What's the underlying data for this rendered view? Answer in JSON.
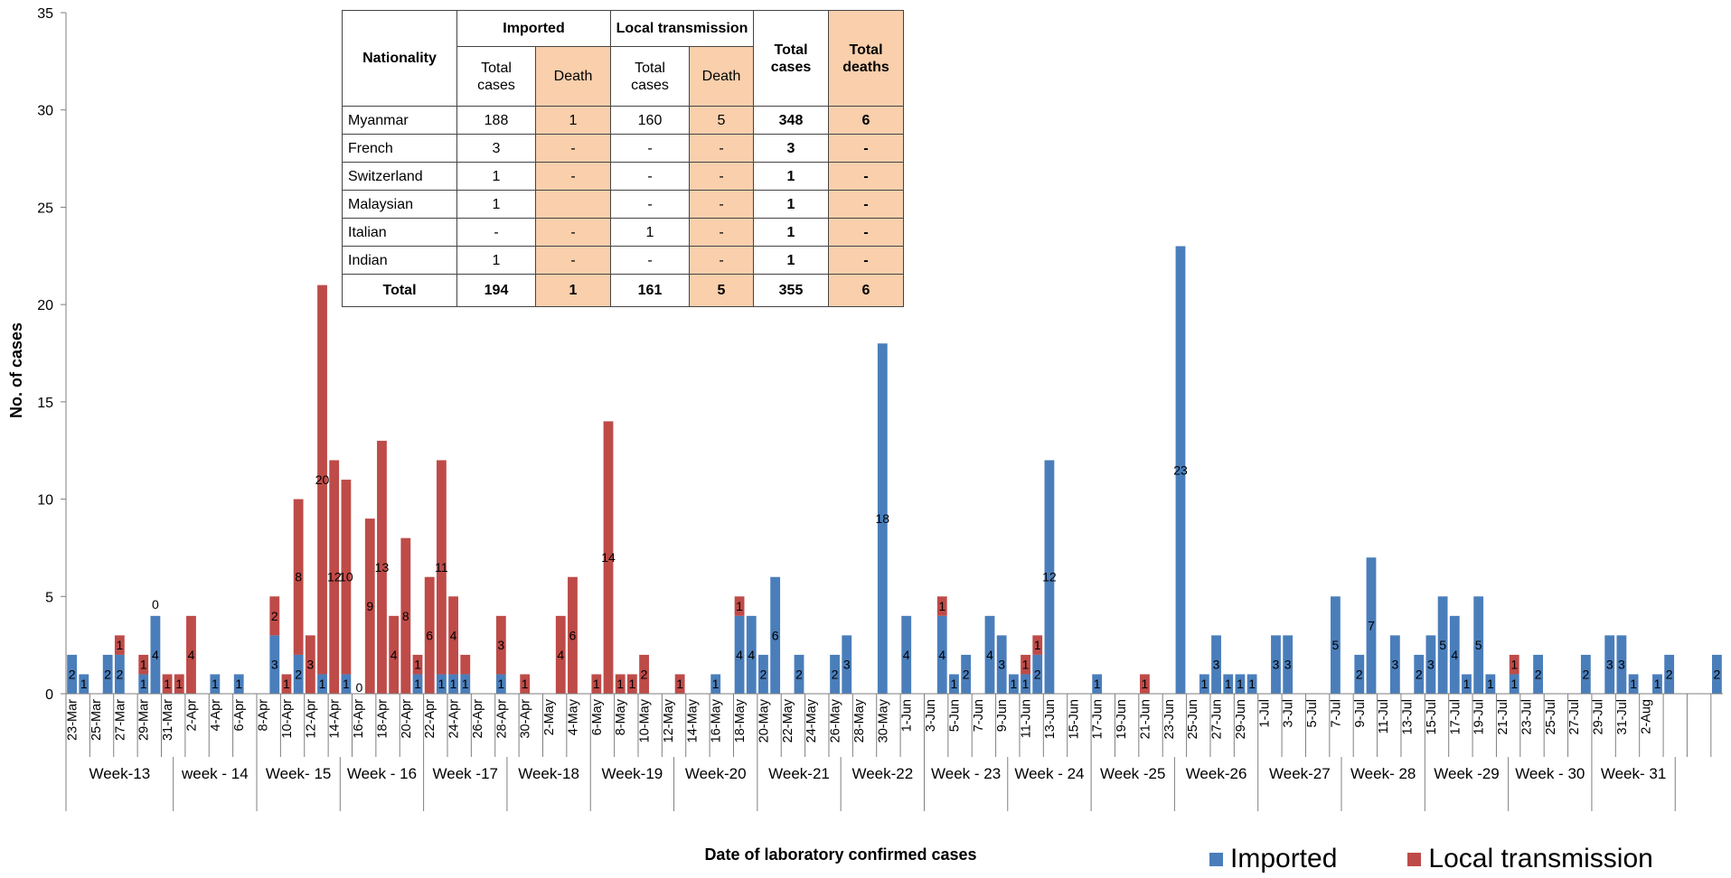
{
  "chart_data": {
    "type": "bar",
    "stacked": true,
    "ylabel": "No. of cases",
    "xlabel": "Date of laboratory confirmed cases",
    "ylim": [
      0,
      35
    ],
    "yticks": [
      0,
      5,
      10,
      15,
      20,
      25,
      30,
      35
    ],
    "legend_position": "bottom-right",
    "series": [
      {
        "name": "Imported",
        "color": "#4a7ebb"
      },
      {
        "name": "Local transmission",
        "color": "#be4b48"
      }
    ],
    "date_labels": [
      "23-Mar",
      "25-Mar",
      "27-Mar",
      "29-Mar",
      "31-Mar",
      "2-Apr",
      "4-Apr",
      "6-Apr",
      "8-Apr",
      "10-Apr",
      "12-Apr",
      "14-Apr",
      "16-Apr",
      "18-Apr",
      "20-Apr",
      "22-Apr",
      "24-Apr",
      "26-Apr",
      "28-Apr",
      "30-Apr",
      "2-May",
      "4-May",
      "6-May",
      "8-May",
      "10-May",
      "12-May",
      "14-May",
      "16-May",
      "18-May",
      "20-May",
      "22-May",
      "24-May",
      "26-May",
      "28-May",
      "30-May",
      "1-Jun",
      "3-Jun",
      "5-Jun",
      "7-Jun",
      "9-Jun",
      "11-Jun",
      "13-Jun",
      "15-Jun",
      "17-Jun",
      "19-Jun",
      "21-Jun",
      "23-Jun",
      "25-Jun",
      "27-Jun",
      "29-Jun",
      "1-Jul",
      "3-Jul",
      "5-Jul",
      "7-Jul",
      "9-Jul",
      "11-Jul",
      "13-Jul",
      "15-Jul",
      "17-Jul",
      "19-Jul",
      "21-Jul",
      "23-Jul",
      "25-Jul",
      "27-Jul",
      "29-Jul",
      "31-Jul",
      "2-Aug"
    ],
    "weeks": [
      {
        "label": "Week-13",
        "start": 2,
        "end": 8
      },
      {
        "label": "week - 14",
        "start": 9,
        "end": 15
      },
      {
        "label": "Week- 15",
        "start": 16,
        "end": 22
      },
      {
        "label": "Week - 16",
        "start": 23,
        "end": 29
      },
      {
        "label": "Week -17",
        "start": 30,
        "end": 36
      },
      {
        "label": "Week-18",
        "start": 37,
        "end": 43
      },
      {
        "label": "Week-19",
        "start": 44,
        "end": 50
      },
      {
        "label": "Week-20",
        "start": 51,
        "end": 57
      },
      {
        "label": "Week-21",
        "start": 58,
        "end": 64
      },
      {
        "label": "Week-22",
        "start": 65,
        "end": 71
      },
      {
        "label": "Week - 23",
        "start": 72,
        "end": 78
      },
      {
        "label": "Week - 24",
        "start": 79,
        "end": 85
      },
      {
        "label": "Week -25",
        "start": 86,
        "end": 92
      },
      {
        "label": "Week-26",
        "start": 93,
        "end": 99
      },
      {
        "label": "Week-27",
        "start": 100,
        "end": 106
      },
      {
        "label": "Week- 28",
        "start": 107,
        "end": 113
      },
      {
        "label": "Week -29",
        "start": 114,
        "end": 120
      },
      {
        "label": "Week - 30",
        "start": 121,
        "end": 127
      },
      {
        "label": "Week- 31",
        "start": 128,
        "end": 134
      }
    ],
    "bars": [
      {
        "d": 0,
        "imp": 2,
        "loc": 0,
        "imp_label": "2"
      },
      {
        "d": 1,
        "imp": 1,
        "loc": 0,
        "imp_label": "1"
      },
      {
        "d": 3,
        "imp": 2,
        "loc": 0,
        "imp_label": "2"
      },
      {
        "d": 4,
        "imp": 2,
        "loc": 1,
        "imp_label": "2",
        "loc_label": "1"
      },
      {
        "d": 6,
        "imp": 1,
        "loc": 1,
        "imp_label": "1",
        "loc_label": "1"
      },
      {
        "d": 7,
        "imp": 4,
        "loc": 0,
        "imp_label": "4",
        "loc_label": "0"
      },
      {
        "d": 8,
        "imp": 0,
        "loc": 1,
        "loc_label": "1"
      },
      {
        "d": 9,
        "imp": 0,
        "loc": 1,
        "loc_label": "1"
      },
      {
        "d": 10,
        "imp": 0,
        "loc": 4,
        "loc_label": "4"
      },
      {
        "d": 12,
        "imp": 1,
        "loc": 0,
        "imp_label": "1"
      },
      {
        "d": 14,
        "imp": 1,
        "loc": 0,
        "imp_label": "1"
      },
      {
        "d": 17,
        "imp": 3,
        "loc": 2,
        "imp_label": "3",
        "loc_label": "2"
      },
      {
        "d": 18,
        "imp": 0,
        "loc": 1,
        "loc_label": "1"
      },
      {
        "d": 19,
        "imp": 2,
        "loc": 8,
        "imp_label": "2",
        "loc_label": "8"
      },
      {
        "d": 20,
        "imp": 0,
        "loc": 3,
        "loc_label": "3"
      },
      {
        "d": 21,
        "imp": 1,
        "loc": 20,
        "imp_label": "1",
        "loc_label": "20"
      },
      {
        "d": 22,
        "imp": 0,
        "loc": 12,
        "loc_label": "12"
      },
      {
        "d": 23,
        "imp": 1,
        "loc": 10,
        "imp_label": "1",
        "loc_label": "10",
        "extra_label": "0"
      },
      {
        "d": 25,
        "imp": 0,
        "loc": 9,
        "loc_label": "9"
      },
      {
        "d": 26,
        "imp": 0,
        "loc": 13,
        "loc_label": "13"
      },
      {
        "d": 27,
        "imp": 0,
        "loc": 4,
        "loc_label": "4"
      },
      {
        "d": 28,
        "imp": 0,
        "loc": 8,
        "loc_label": "8"
      },
      {
        "d": 29,
        "imp": 1,
        "loc": 1,
        "imp_label": "1",
        "loc_label": "1"
      },
      {
        "d": 30,
        "imp": 0,
        "loc": 6,
        "loc_label": "6"
      },
      {
        "d": 31,
        "imp": 1,
        "loc": 11,
        "imp_label": "1",
        "loc_label": "11"
      },
      {
        "d": 32,
        "imp": 1,
        "loc": 4,
        "imp_label": "1",
        "loc_label": "4"
      },
      {
        "d": 33,
        "imp": 1,
        "loc": 1,
        "imp_label": "1"
      },
      {
        "d": 36,
        "imp": 1,
        "loc": 3,
        "imp_label": "1",
        "loc_label": "3"
      },
      {
        "d": 38,
        "imp": 0,
        "loc": 1,
        "loc_label": "1"
      },
      {
        "d": 41,
        "imp": 0,
        "loc": 4,
        "loc_label": "4"
      },
      {
        "d": 42,
        "imp": 0,
        "loc": 6,
        "loc_label": "6"
      },
      {
        "d": 44,
        "imp": 0,
        "loc": 1,
        "loc_label": "1"
      },
      {
        "d": 45,
        "imp": 0,
        "loc": 14,
        "loc_label": "14"
      },
      {
        "d": 46,
        "imp": 0,
        "loc": 1,
        "loc_label": "1"
      },
      {
        "d": 47,
        "imp": 0,
        "loc": 1,
        "loc_label": "1"
      },
      {
        "d": 48,
        "imp": 0,
        "loc": 2,
        "loc_label": "2"
      },
      {
        "d": 51,
        "imp": 0,
        "loc": 1,
        "loc_label": "1"
      },
      {
        "d": 54,
        "imp": 1,
        "loc": 0,
        "imp_label": "1"
      },
      {
        "d": 56,
        "imp": 4,
        "loc": 1,
        "imp_label": "4",
        "loc_label": "1"
      },
      {
        "d": 57,
        "imp": 4,
        "loc": 0,
        "imp_label": "4"
      },
      {
        "d": 58,
        "imp": 2,
        "loc": 0,
        "imp_label": "2"
      },
      {
        "d": 59,
        "imp": 6,
        "loc": 0,
        "imp_label": "6"
      },
      {
        "d": 61,
        "imp": 2,
        "loc": 0,
        "imp_label": "2"
      },
      {
        "d": 64,
        "imp": 2,
        "loc": 0,
        "imp_label": "2"
      },
      {
        "d": 65,
        "imp": 3,
        "loc": 0,
        "imp_label": "3"
      },
      {
        "d": 68,
        "imp": 18,
        "loc": 0,
        "imp_label": "18"
      },
      {
        "d": 70,
        "imp": 4,
        "loc": 0,
        "imp_label": "4"
      },
      {
        "d": 73,
        "imp": 4,
        "loc": 1,
        "imp_label": "4",
        "loc_label": "1"
      },
      {
        "d": 74,
        "imp": 1,
        "loc": 0,
        "imp_label": "1"
      },
      {
        "d": 75,
        "imp": 2,
        "loc": 0,
        "imp_label": "2"
      },
      {
        "d": 77,
        "imp": 4,
        "loc": 0,
        "imp_label": "4"
      },
      {
        "d": 78,
        "imp": 3,
        "loc": 0,
        "imp_label": "3"
      },
      {
        "d": 79,
        "imp": 1,
        "loc": 0,
        "imp_label": "1"
      },
      {
        "d": 80,
        "imp": 1,
        "loc": 1,
        "imp_label": "1",
        "loc_label": "1"
      },
      {
        "d": 81,
        "imp": 2,
        "loc": 1,
        "imp_label": "2",
        "loc_label": "1"
      },
      {
        "d": 82,
        "imp": 12,
        "loc": 0,
        "imp_label": "12"
      },
      {
        "d": 86,
        "imp": 1,
        "loc": 0,
        "imp_label": "1"
      },
      {
        "d": 90,
        "imp": 0,
        "loc": 1,
        "loc_label": "1"
      },
      {
        "d": 93,
        "imp": 23,
        "loc": 0,
        "imp_label": "23"
      },
      {
        "d": 95,
        "imp": 1,
        "loc": 0,
        "imp_label": "1"
      },
      {
        "d": 96,
        "imp": 3,
        "loc": 0,
        "imp_label": "3"
      },
      {
        "d": 97,
        "imp": 1,
        "loc": 0,
        "imp_label": "1"
      },
      {
        "d": 98,
        "imp": 1,
        "loc": 0,
        "imp_label": "1"
      },
      {
        "d": 99,
        "imp": 1,
        "loc": 0,
        "imp_label": "1"
      },
      {
        "d": 101,
        "imp": 3,
        "loc": 0,
        "imp_label": "3"
      },
      {
        "d": 102,
        "imp": 3,
        "loc": 0,
        "imp_label": "3"
      },
      {
        "d": 106,
        "imp": 5,
        "loc": 0,
        "imp_label": "5"
      },
      {
        "d": 108,
        "imp": 2,
        "loc": 0,
        "imp_label": "2"
      },
      {
        "d": 109,
        "imp": 7,
        "loc": 0,
        "imp_label": "7"
      },
      {
        "d": 111,
        "imp": 3,
        "loc": 0,
        "imp_label": "3"
      },
      {
        "d": 113,
        "imp": 2,
        "loc": 0,
        "imp_label": "2"
      },
      {
        "d": 114,
        "imp": 3,
        "loc": 0,
        "imp_label": "3"
      },
      {
        "d": 115,
        "imp": 5,
        "loc": 0,
        "imp_label": "5"
      },
      {
        "d": 116,
        "imp": 4,
        "loc": 0,
        "imp_label": "4"
      },
      {
        "d": 117,
        "imp": 1,
        "loc": 0,
        "imp_label": "1"
      },
      {
        "d": 118,
        "imp": 5,
        "loc": 0,
        "imp_label": "5"
      },
      {
        "d": 119,
        "imp": 1,
        "loc": 0,
        "imp_label": "1"
      },
      {
        "d": 121,
        "imp": 1,
        "loc": 1,
        "imp_label": "1",
        "loc_label": "1"
      },
      {
        "d": 123,
        "imp": 2,
        "loc": 0,
        "imp_label": "2"
      },
      {
        "d": 127,
        "imp": 2,
        "loc": 0,
        "imp_label": "2"
      },
      {
        "d": 129,
        "imp": 3,
        "loc": 0,
        "imp_label": "3"
      },
      {
        "d": 130,
        "imp": 3,
        "loc": 0,
        "imp_label": "3"
      },
      {
        "d": 131,
        "imp": 1,
        "loc": 0,
        "imp_label": "1"
      },
      {
        "d": 133,
        "imp": 1,
        "loc": 0,
        "imp_label": "1"
      },
      {
        "d": 134,
        "imp": 2,
        "loc": 0,
        "imp_label": "2"
      },
      {
        "d": 138,
        "imp": 2,
        "loc": 0,
        "imp_label": "2"
      }
    ]
  },
  "table": {
    "headers": {
      "nationality": "Nationality",
      "imported": "Imported",
      "local": "Local transmission",
      "total_cases": "Total cases",
      "total_deaths": "Total deaths",
      "sub_total_cases": "Total cases",
      "sub_death": "Death"
    },
    "rows": [
      {
        "name": "Myanmar",
        "imp_total": "188",
        "imp_death": "1",
        "loc_total": "160",
        "loc_death": "5",
        "total": "348",
        "deaths": "6"
      },
      {
        "name": "French",
        "imp_total": "3",
        "imp_death": "-",
        "loc_total": "-",
        "loc_death": "-",
        "total": "3",
        "deaths": "-"
      },
      {
        "name": "Switzerland",
        "imp_total": "1",
        "imp_death": "-",
        "loc_total": "-",
        "loc_death": "-",
        "total": "1",
        "deaths": "-"
      },
      {
        "name": "Malaysian",
        "imp_total": "1",
        "imp_death": "",
        "loc_total": "-",
        "loc_death": "-",
        "total": "1",
        "deaths": "-"
      },
      {
        "name": "Italian",
        "imp_total": "-",
        "imp_death": "-",
        "loc_total": "1",
        "loc_death": "-",
        "total": "1",
        "deaths": "-"
      },
      {
        "name": "Indian",
        "imp_total": "1",
        "imp_death": "-",
        "loc_total": "-",
        "loc_death": "-",
        "total": "1",
        "deaths": "-"
      }
    ],
    "total_row": {
      "name": "Total",
      "imp_total": "194",
      "imp_death": "1",
      "loc_total": "161",
      "loc_death": "5",
      "total": "355",
      "deaths": "6"
    }
  }
}
